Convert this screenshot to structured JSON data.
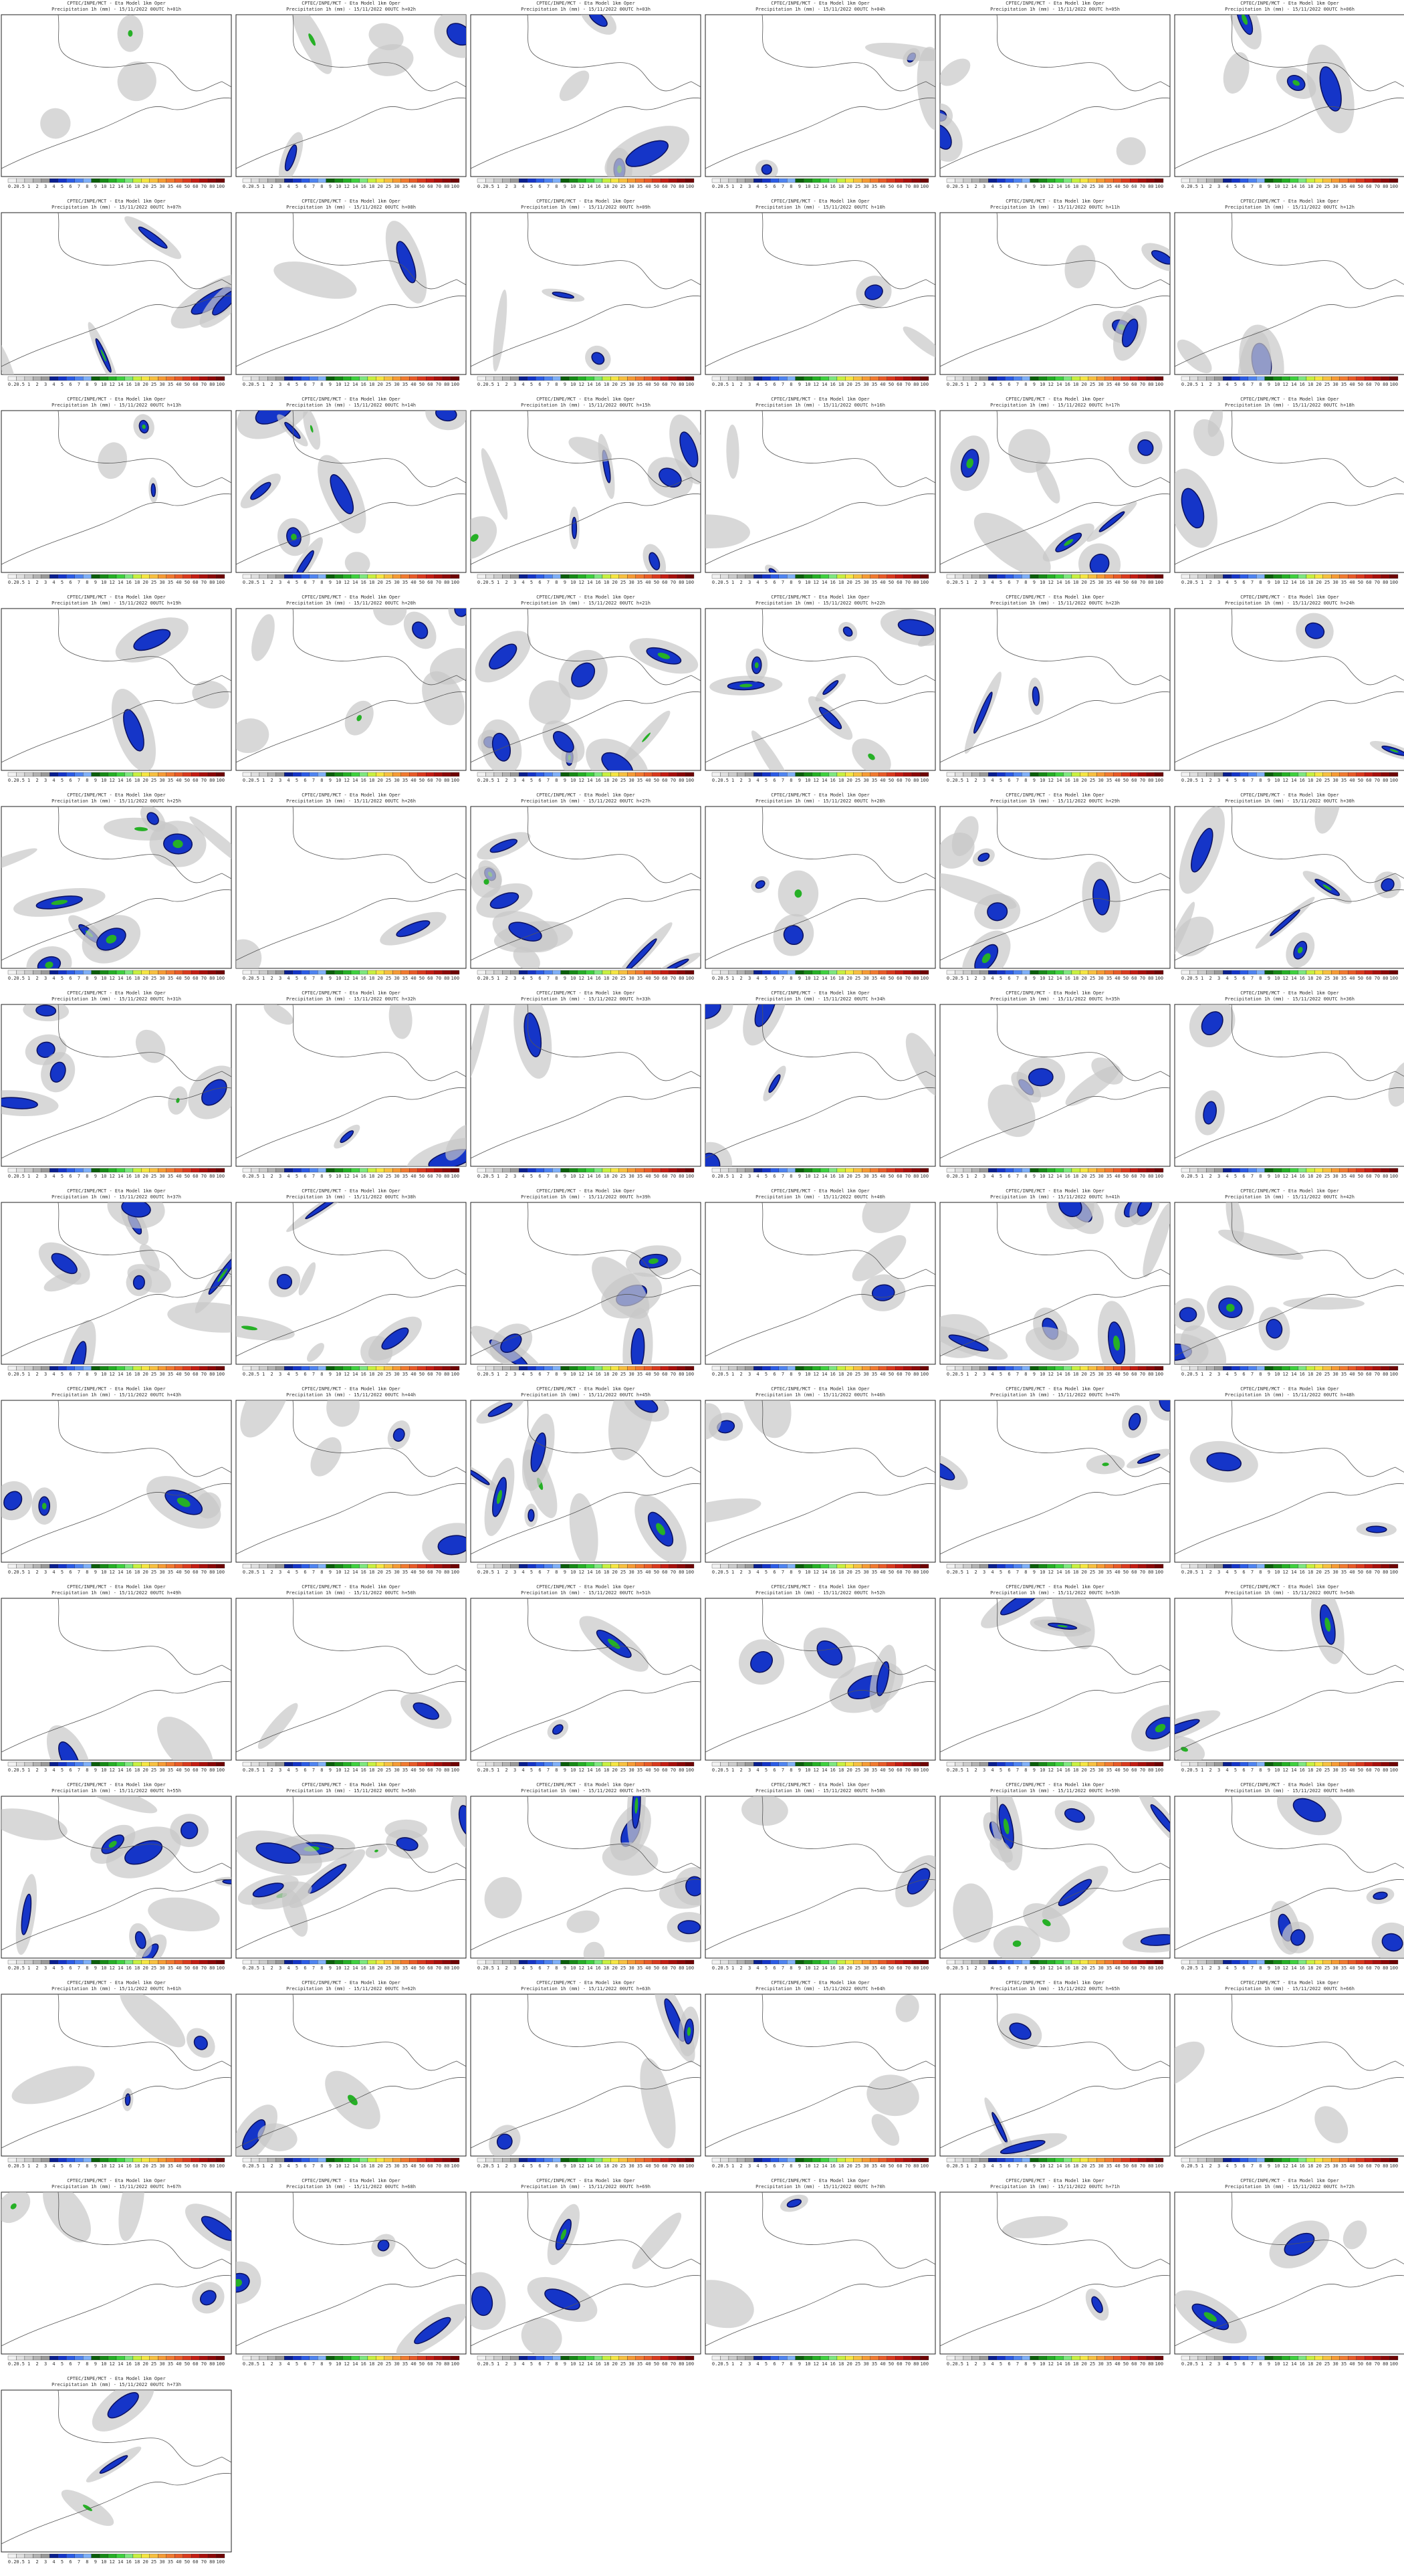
{
  "header": "CPTEC/INPE/MCT - Eta Model 1km Oper",
  "colorbar_labels": [
    "0.2",
    "0.5",
    "1",
    "2",
    "3",
    "4",
    "5",
    "6",
    "7",
    "8",
    "9",
    "10",
    "12",
    "14",
    "16",
    "18",
    "20",
    "25",
    "30",
    "35",
    "40",
    "50",
    "60",
    "70",
    "80",
    "100"
  ],
  "panels": [
    "Precipitation 1h (mm) - 15/11/2022 00UTC h+01h",
    "Precipitation 1h (mm) - 15/11/2022 00UTC h+02h",
    "Precipitation 1h (mm) - 15/11/2022 00UTC h+03h",
    "Precipitation 1h (mm) - 15/11/2022 00UTC h+04h",
    "Precipitation 1h (mm) - 15/11/2022 00UTC h+05h",
    "Precipitation 1h (mm) - 15/11/2022 00UTC h+06h",
    "Precipitation 1h (mm) - 15/11/2022 00UTC h+07h",
    "Precipitation 1h (mm) - 15/11/2022 00UTC h+08h",
    "Precipitation 1h (mm) - 15/11/2022 00UTC h+09h",
    "Precipitation 1h (mm) - 15/11/2022 00UTC h+10h",
    "Precipitation 1h (mm) - 15/11/2022 00UTC h+11h",
    "Precipitation 1h (mm) - 15/11/2022 00UTC h+12h",
    "Precipitation 1h (mm) - 15/11/2022 00UTC h+13h",
    "Precipitation 1h (mm) - 15/11/2022 00UTC h+14h",
    "Precipitation 1h (mm) - 15/11/2022 00UTC h+15h",
    "Precipitation 1h (mm) - 15/11/2022 00UTC h+16h",
    "Precipitation 1h (mm) - 15/11/2022 00UTC h+17h",
    "Precipitation 1h (mm) - 15/11/2022 00UTC h+18h",
    "Precipitation 1h (mm) - 15/11/2022 00UTC h+19h",
    "Precipitation 1h (mm) - 15/11/2022 00UTC h+20h",
    "Precipitation 1h (mm) - 15/11/2022 00UTC h+21h",
    "Precipitation 1h (mm) - 15/11/2022 00UTC h+22h",
    "Precipitation 1h (mm) - 15/11/2022 00UTC h+23h",
    "Precipitation 1h (mm) - 15/11/2022 00UTC h+24h",
    "Precipitation 1h (mm) - 15/11/2022 00UTC h+25h",
    "Precipitation 1h (mm) - 15/11/2022 00UTC h+26h",
    "Precipitation 1h (mm) - 15/11/2022 00UTC h+27h",
    "Precipitation 1h (mm) - 15/11/2022 00UTC h+28h",
    "Precipitation 1h (mm) - 15/11/2022 00UTC h+29h",
    "Precipitation 1h (mm) - 15/11/2022 00UTC h+30h",
    "Precipitation 1h (mm) - 15/11/2022 00UTC h+31h",
    "Precipitation 1h (mm) - 15/11/2022 00UTC h+32h",
    "Precipitation 1h (mm) - 15/11/2022 00UTC h+33h",
    "Precipitation 1h (mm) - 15/11/2022 00UTC h+34h",
    "Precipitation 1h (mm) - 15/11/2022 00UTC h+35h",
    "Precipitation 1h (mm) - 15/11/2022 00UTC h+36h",
    "Precipitation 1h (mm) - 15/11/2022 00UTC h+37h",
    "Precipitation 1h (mm) - 15/11/2022 00UTC h+38h",
    "Precipitation 1h (mm) - 15/11/2022 00UTC h+39h",
    "Precipitation 1h (mm) - 15/11/2022 00UTC h+40h",
    "Precipitation 1h (mm) - 15/11/2022 00UTC h+41h",
    "Precipitation 1h (mm) - 15/11/2022 00UTC h+42h",
    "Precipitation 1h (mm) - 15/11/2022 00UTC h+43h",
    "Precipitation 1h (mm) - 15/11/2022 00UTC h+44h",
    "Precipitation 1h (mm) - 15/11/2022 00UTC h+45h",
    "Precipitation 1h (mm) - 15/11/2022 00UTC h+46h",
    "Precipitation 1h (mm) - 15/11/2022 00UTC h+47h",
    "Precipitation 1h (mm) - 15/11/2022 00UTC h+48h",
    "Precipitation 1h (mm) - 15/11/2022 00UTC h+49h",
    "Precipitation 1h (mm) - 15/11/2022 00UTC h+50h",
    "Precipitation 1h (mm) - 15/11/2022 00UTC h+51h",
    "Precipitation 1h (mm) - 15/11/2022 00UTC h+52h",
    "Precipitation 1h (mm) - 15/11/2022 00UTC h+53h",
    "Precipitation 1h (mm) - 15/11/2022 00UTC h+54h",
    "Precipitation 1h (mm) - 15/11/2022 00UTC h+55h",
    "Precipitation 1h (mm) - 15/11/2022 00UTC h+56h",
    "Precipitation 1h (mm) - 15/11/2022 00UTC h+57h",
    "Precipitation 1h (mm) - 15/11/2022 00UTC h+58h",
    "Precipitation 1h (mm) - 15/11/2022 00UTC h+59h",
    "Precipitation 1h (mm) - 15/11/2022 00UTC h+60h",
    "Precipitation 1h (mm) - 15/11/2022 00UTC h+61h",
    "Precipitation 1h (mm) - 15/11/2022 00UTC h+62h",
    "Precipitation 1h (mm) - 15/11/2022 00UTC h+63h",
    "Precipitation 1h (mm) - 15/11/2022 00UTC h+64h",
    "Precipitation 1h (mm) - 15/11/2022 00UTC h+65h",
    "Precipitation 1h (mm) - 15/11/2022 00UTC h+66h",
    "Precipitation 1h (mm) - 15/11/2022 00UTC h+67h",
    "Precipitation 1h (mm) - 15/11/2022 00UTC h+68h",
    "Precipitation 1h (mm) - 15/11/2022 00UTC h+69h",
    "Precipitation 1h (mm) - 15/11/2022 00UTC h+70h",
    "Precipitation 1h (mm) - 15/11/2022 00UTC h+71h",
    "Precipitation 1h (mm) - 15/11/2022 00UTC h+72h",
    "Precipitation 1h (mm) - 15/11/2022 00UTC h+73h"
  ]
}
